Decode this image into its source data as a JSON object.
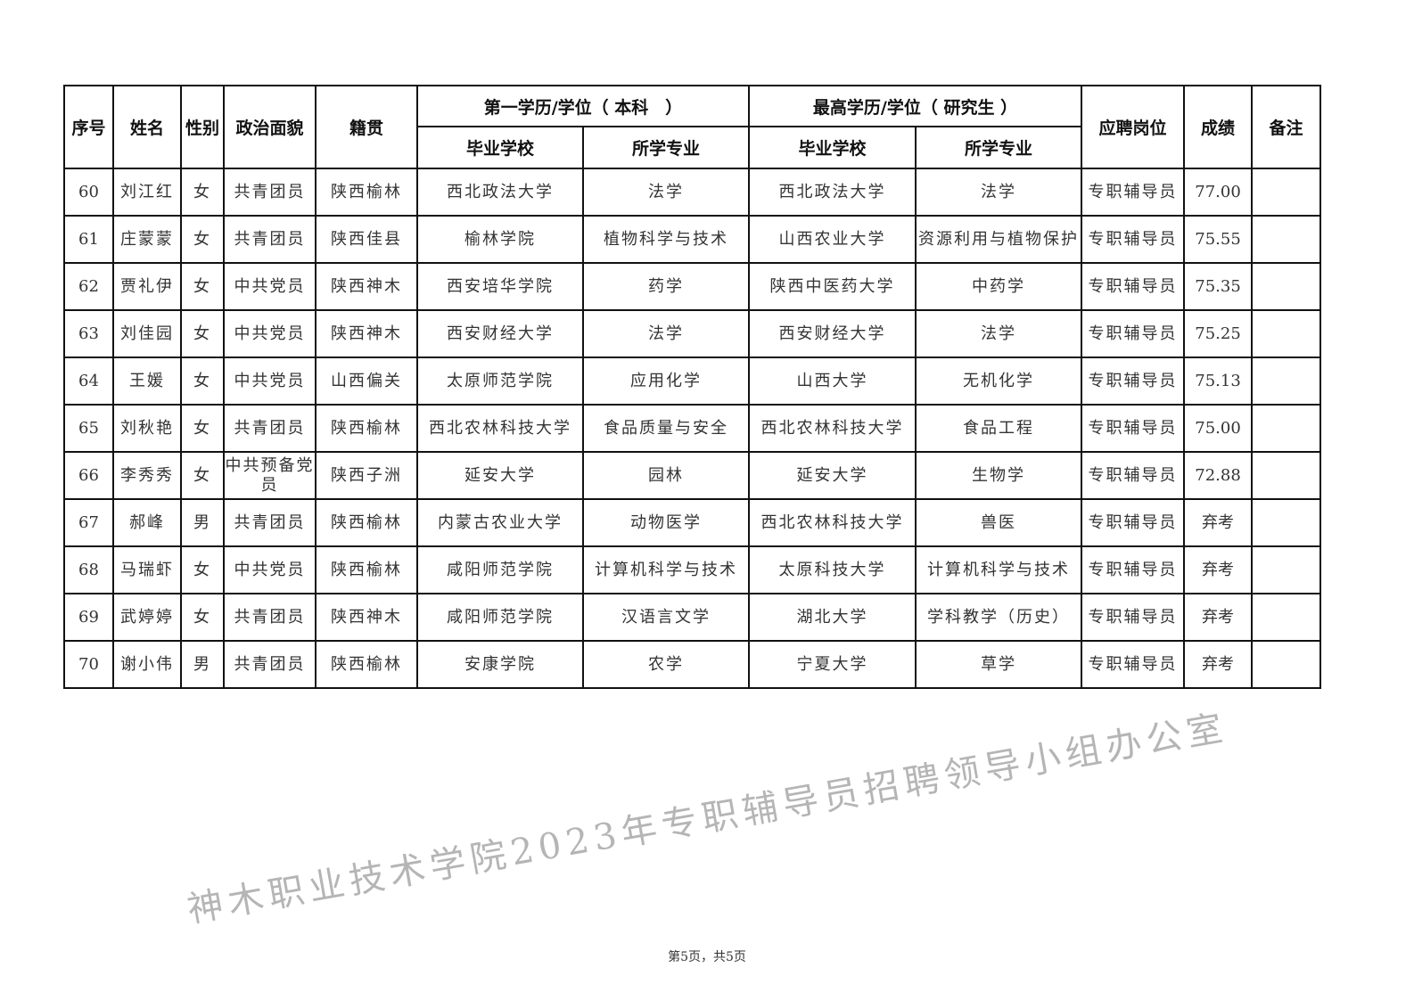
{
  "header": {
    "seq": "序号",
    "name": "姓名",
    "gender": "性别",
    "politics": "政治面貌",
    "origin": "籍贯",
    "first_degree": "第一学历/学位（ 本科　）",
    "highest_degree": "最高学历/学位（ 研究生 ）",
    "school": "毕业学校",
    "major": "所学专业",
    "school2": "毕业学校",
    "major2": "所学专业",
    "position": "应聘岗位",
    "score": "成绩",
    "remark": "备注"
  },
  "rows": [
    {
      "seq": "60",
      "name": "刘江红",
      "gender": "女",
      "politics": "共青团员",
      "origin": "陕西榆林",
      "school1": "西北政法大学",
      "major1": "法学",
      "school2": "西北政法大学",
      "major2": "法学",
      "position": "专职辅导员",
      "score": "77.00",
      "remark": ""
    },
    {
      "seq": "61",
      "name": "庄蒙蒙",
      "gender": "女",
      "politics": "共青团员",
      "origin": "陕西佳县",
      "school1": "榆林学院",
      "major1": "植物科学与技术",
      "school2": "山西农业大学",
      "major2": "资源利用与植物保护",
      "position": "专职辅导员",
      "score": "75.55",
      "remark": ""
    },
    {
      "seq": "62",
      "name": "贾礼伊",
      "gender": "女",
      "politics": "中共党员",
      "origin": "陕西神木",
      "school1": "西安培华学院",
      "major1": "药学",
      "school2": "陕西中医药大学",
      "major2": "中药学",
      "position": "专职辅导员",
      "score": "75.35",
      "remark": ""
    },
    {
      "seq": "63",
      "name": "刘佳园",
      "gender": "女",
      "politics": "中共党员",
      "origin": "陕西神木",
      "school1": "西安财经大学",
      "major1": "法学",
      "school2": "西安财经大学",
      "major2": "法学",
      "position": "专职辅导员",
      "score": "75.25",
      "remark": ""
    },
    {
      "seq": "64",
      "name": "王媛",
      "gender": "女",
      "politics": "中共党员",
      "origin": "山西偏关",
      "school1": "太原师范学院",
      "major1": "应用化学",
      "school2": "山西大学",
      "major2": "无机化学",
      "position": "专职辅导员",
      "score": "75.13",
      "remark": ""
    },
    {
      "seq": "65",
      "name": "刘秋艳",
      "gender": "女",
      "politics": "共青团员",
      "origin": "陕西榆林",
      "school1": "西北农林科技大学",
      "major1": "食品质量与安全",
      "school2": "西北农林科技大学",
      "major2": "食品工程",
      "position": "专职辅导员",
      "score": "75.00",
      "remark": ""
    },
    {
      "seq": "66",
      "name": "李秀秀",
      "gender": "女",
      "politics": "中共预备党员",
      "origin": "陕西子洲",
      "school1": "延安大学",
      "major1": "园林",
      "school2": "延安大学",
      "major2": "生物学",
      "position": "专职辅导员",
      "score": "72.88",
      "remark": ""
    },
    {
      "seq": "67",
      "name": "郝峰",
      "gender": "男",
      "politics": "共青团员",
      "origin": "陕西榆林",
      "school1": "内蒙古农业大学",
      "major1": "动物医学",
      "school2": "西北农林科技大学",
      "major2": "兽医",
      "position": "专职辅导员",
      "score": "弃考",
      "remark": ""
    },
    {
      "seq": "68",
      "name": "马瑞虾",
      "gender": "女",
      "politics": "中共党员",
      "origin": "陕西榆林",
      "school1": "咸阳师范学院",
      "major1": "计算机科学与技术",
      "school2": "太原科技大学",
      "major2": "计算机科学与技术",
      "position": "专职辅导员",
      "score": "弃考",
      "remark": ""
    },
    {
      "seq": "69",
      "name": "武婷婷",
      "gender": "女",
      "politics": "共青团员",
      "origin": "陕西神木",
      "school1": "咸阳师范学院",
      "major1": "汉语言文学",
      "school2": "湖北大学",
      "major2": "学科教学（历史）",
      "position": "专职辅导员",
      "score": "弃考",
      "remark": ""
    },
    {
      "seq": "70",
      "name": "谢小伟",
      "gender": "男",
      "politics": "共青团员",
      "origin": "陕西榆林",
      "school1": "安康学院",
      "major1": "农学",
      "school2": "宁夏大学",
      "major2": "草学",
      "position": "专职辅导员",
      "score": "弃考",
      "remark": ""
    }
  ],
  "watermark": "神木职业技术学院2023年专职辅导员招聘领导小组办公室",
  "footer": "第5页，共5页"
}
